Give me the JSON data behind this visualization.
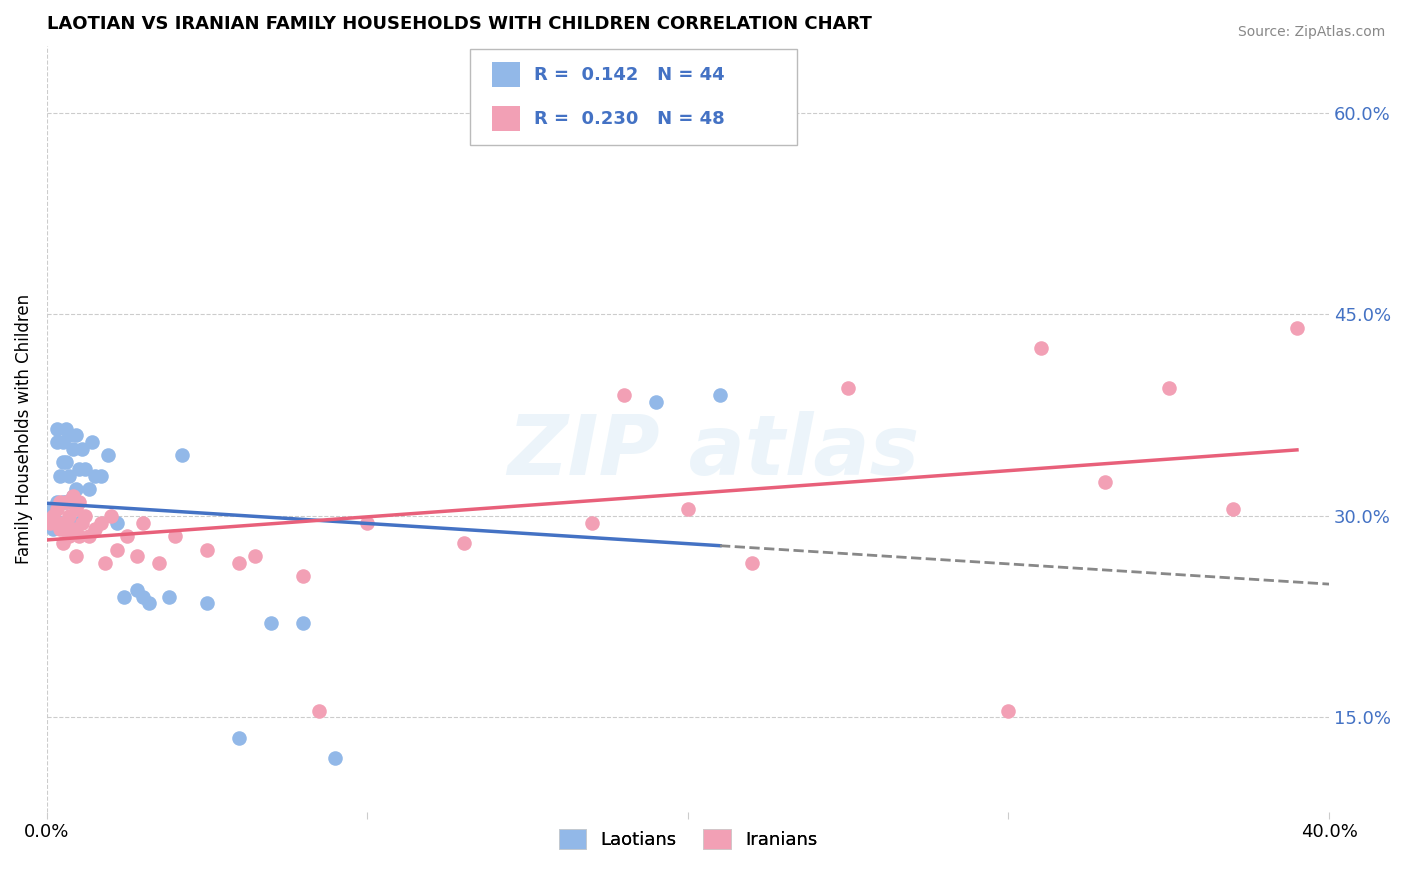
{
  "title": "LAOTIAN VS IRANIAN FAMILY HOUSEHOLDS WITH CHILDREN CORRELATION CHART",
  "source": "Source: ZipAtlas.com",
  "ylabel": "Family Households with Children",
  "xlim": [
    0.0,
    0.4
  ],
  "ylim": [
    0.08,
    0.65
  ],
  "yticks_right": [
    0.15,
    0.3,
    0.45,
    0.6
  ],
  "ytick_right_labels": [
    "15.0%",
    "30.0%",
    "45.0%",
    "60.0%"
  ],
  "laotian_color": "#92B8E8",
  "iranian_color": "#F2A0B5",
  "laotian_line_color": "#4472C4",
  "iranian_line_color": "#E8607A",
  "R_laotian": 0.142,
  "N_laotian": 44,
  "R_iranian": 0.23,
  "N_iranian": 48,
  "background_color": "#FFFFFF",
  "grid_color": "#CCCCCC",
  "laotian_x": [
    0.001,
    0.002,
    0.002,
    0.003,
    0.003,
    0.003,
    0.004,
    0.004,
    0.005,
    0.005,
    0.005,
    0.006,
    0.006,
    0.006,
    0.007,
    0.007,
    0.007,
    0.008,
    0.008,
    0.009,
    0.009,
    0.01,
    0.01,
    0.011,
    0.012,
    0.013,
    0.014,
    0.015,
    0.017,
    0.019,
    0.022,
    0.024,
    0.028,
    0.03,
    0.032,
    0.038,
    0.042,
    0.05,
    0.06,
    0.07,
    0.08,
    0.09,
    0.19,
    0.21
  ],
  "laotian_y": [
    0.295,
    0.305,
    0.29,
    0.355,
    0.365,
    0.31,
    0.33,
    0.295,
    0.355,
    0.34,
    0.31,
    0.365,
    0.34,
    0.31,
    0.36,
    0.33,
    0.295,
    0.35,
    0.315,
    0.36,
    0.32,
    0.335,
    0.295,
    0.35,
    0.335,
    0.32,
    0.355,
    0.33,
    0.33,
    0.345,
    0.295,
    0.24,
    0.245,
    0.24,
    0.235,
    0.24,
    0.345,
    0.235,
    0.135,
    0.22,
    0.22,
    0.12,
    0.385,
    0.39
  ],
  "iranian_x": [
    0.001,
    0.002,
    0.003,
    0.004,
    0.004,
    0.005,
    0.005,
    0.006,
    0.006,
    0.007,
    0.007,
    0.008,
    0.008,
    0.009,
    0.009,
    0.01,
    0.01,
    0.011,
    0.012,
    0.013,
    0.015,
    0.017,
    0.018,
    0.02,
    0.022,
    0.025,
    0.028,
    0.03,
    0.035,
    0.04,
    0.05,
    0.06,
    0.065,
    0.08,
    0.085,
    0.1,
    0.13,
    0.17,
    0.18,
    0.2,
    0.22,
    0.25,
    0.3,
    0.31,
    0.33,
    0.35,
    0.37,
    0.39
  ],
  "iranian_y": [
    0.295,
    0.3,
    0.305,
    0.31,
    0.29,
    0.295,
    0.28,
    0.31,
    0.295,
    0.285,
    0.3,
    0.315,
    0.29,
    0.305,
    0.27,
    0.31,
    0.285,
    0.295,
    0.3,
    0.285,
    0.29,
    0.295,
    0.265,
    0.3,
    0.275,
    0.285,
    0.27,
    0.295,
    0.265,
    0.285,
    0.275,
    0.265,
    0.27,
    0.255,
    0.155,
    0.295,
    0.28,
    0.295,
    0.39,
    0.305,
    0.265,
    0.395,
    0.155,
    0.425,
    0.325,
    0.395,
    0.305,
    0.44
  ]
}
